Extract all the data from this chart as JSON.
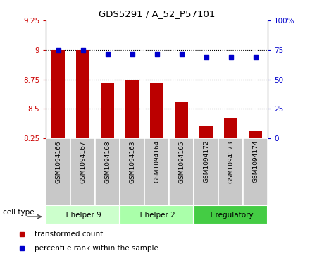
{
  "title": "GDS5291 / A_52_P57101",
  "samples": [
    "GSM1094166",
    "GSM1094167",
    "GSM1094168",
    "GSM1094163",
    "GSM1094164",
    "GSM1094165",
    "GSM1094172",
    "GSM1094173",
    "GSM1094174"
  ],
  "transformed_counts": [
    9.0,
    9.0,
    8.72,
    8.75,
    8.72,
    8.56,
    8.36,
    8.42,
    8.31
  ],
  "percentile_ranks": [
    75,
    75,
    71,
    71,
    71,
    71,
    69,
    69,
    69
  ],
  "ylim_left": [
    8.25,
    9.25
  ],
  "ylim_right": [
    0,
    100
  ],
  "yticks_left": [
    8.25,
    8.5,
    8.75,
    9.0,
    9.25
  ],
  "yticks_right": [
    0,
    25,
    50,
    75,
    100
  ],
  "ytick_labels_left": [
    "8.25",
    "8.5",
    "8.75",
    "9",
    "9.25"
  ],
  "ytick_labels_right": [
    "0",
    "25",
    "50",
    "75",
    "100%"
  ],
  "bar_color": "#bb0000",
  "dot_color": "#0000cc",
  "cell_types": [
    {
      "label": "T helper 9",
      "start": 0,
      "end": 3,
      "color": "#ccffcc"
    },
    {
      "label": "T helper 2",
      "start": 3,
      "end": 6,
      "color": "#aaffaa"
    },
    {
      "label": "T regulatory",
      "start": 6,
      "end": 9,
      "color": "#44cc44"
    }
  ],
  "legend_items": [
    {
      "label": "transformed count",
      "color": "#bb0000"
    },
    {
      "label": "percentile rank within the sample",
      "color": "#0000cc"
    }
  ],
  "tick_label_color_left": "#cc0000",
  "tick_label_color_right": "#0000cc",
  "bar_width": 0.55,
  "sample_bg_color": "#c8c8c8",
  "cell_type_label": "cell type"
}
